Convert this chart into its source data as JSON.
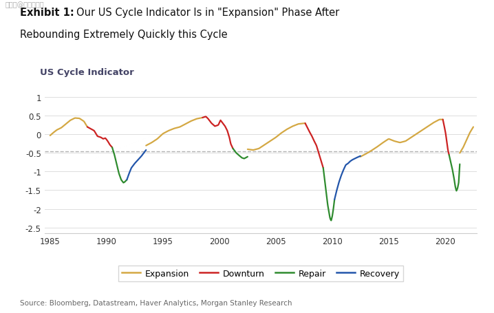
{
  "title_bold": "Exhibit 1:",
  "title_normal": "   Our US Cycle Indicator Is in \"Expansion\" Phase After",
  "title_line2": "Rebounding Extremely Quickly this Cycle",
  "chart_label": "US Cycle Indicator",
  "ylim": [
    -2.65,
    1.1
  ],
  "yticks": [
    1.0,
    0.5,
    0.0,
    -0.5,
    -1.0,
    -1.5,
    -2.0,
    -2.5
  ],
  "xlim": [
    1984.5,
    2022.8
  ],
  "xticks": [
    1985,
    1990,
    1995,
    2000,
    2005,
    2010,
    2015,
    2020
  ],
  "dashed_line_y": -0.45,
  "source_text": "Source: Bloomberg, Datastream, Haver Analytics, Morgan Stanley Research",
  "colors": {
    "expansion": "#D4A843",
    "downturn": "#CC2222",
    "repair": "#2E8B2E",
    "recovery": "#2255AA"
  },
  "background_color": "#FFFFFF",
  "watermark": "搜狐号@陈生今世说"
}
